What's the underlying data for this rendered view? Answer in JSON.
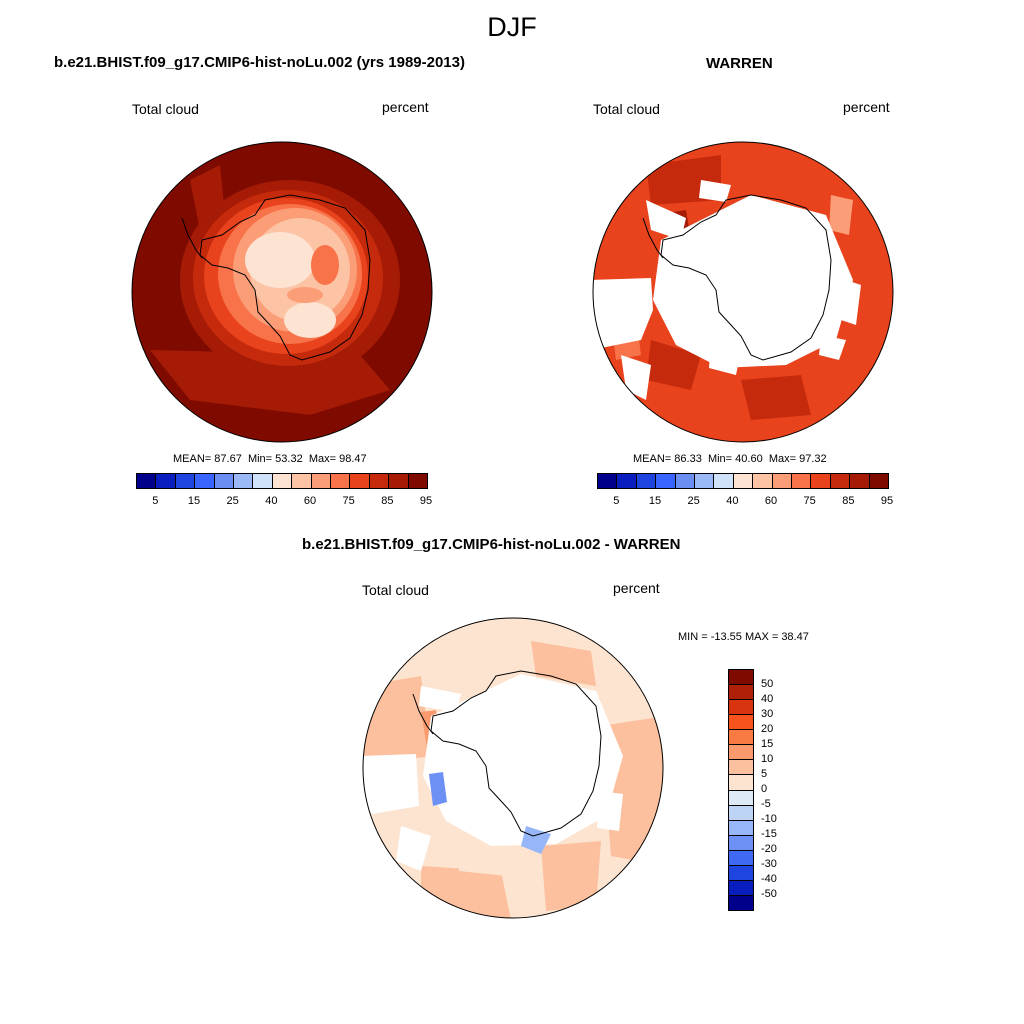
{
  "main_title": "DJF",
  "panels": [
    {
      "title": "b.e21.BHIST.f09_g17.CMIP6-hist-noLu.002 (yrs 1989-2013)",
      "variable_label": "Total cloud",
      "units_label": "percent",
      "stats": {
        "mean_label": "MEAN=",
        "mean": "87.67",
        "min_label": "Min=",
        "min": "53.32",
        "max_label": "Max=",
        "max": "98.47"
      }
    },
    {
      "title": "WARREN",
      "variable_label": "Total cloud",
      "units_label": "percent",
      "stats": {
        "mean_label": "MEAN=",
        "mean": "86.33",
        "min_label": "Min=",
        "min": "40.60",
        "max_label": "Max=",
        "max": "97.32"
      }
    },
    {
      "title": "b.e21.BHIST.f09_g17.CMIP6-hist-noLu.002 - WARREN",
      "variable_label": "Total cloud",
      "units_label": "percent",
      "stats_text": "MIN = -13.55 MAX =  38.47"
    }
  ],
  "chart_data": [
    {
      "type": "heatmap",
      "projection": "south polar stereographic",
      "title": "b.e21.BHIST.f09_g17.CMIP6-hist-noLu.002 (yrs 1989-2013)",
      "variable": "Total cloud",
      "units": "percent",
      "mean": 87.67,
      "min": 53.32,
      "max": 98.47,
      "colorbar": {
        "tick_labels": [
          "5",
          "15",
          "25",
          "40",
          "60",
          "75",
          "85",
          "95"
        ],
        "colors": [
          "#00008b",
          "#0a1ebf",
          "#1f45e0",
          "#3a64ff",
          "#6b8ef2",
          "#9bb8f7",
          "#cfe2f9",
          "#fde3d2",
          "#fcc4a4",
          "#fb9e78",
          "#f8734a",
          "#e8431d",
          "#c62a0c",
          "#a51b06",
          "#7f0b00"
        ]
      }
    },
    {
      "type": "heatmap",
      "projection": "south polar stereographic",
      "title": "WARREN",
      "variable": "Total cloud",
      "units": "percent",
      "mean": 86.33,
      "min": 40.6,
      "max": 97.32,
      "colorbar": {
        "tick_labels": [
          "5",
          "15",
          "25",
          "40",
          "60",
          "75",
          "85",
          "95"
        ],
        "colors": [
          "#00008b",
          "#0a1ebf",
          "#1f45e0",
          "#3a64ff",
          "#6b8ef2",
          "#9bb8f7",
          "#cfe2f9",
          "#fde3d2",
          "#fcc4a4",
          "#fb9e78",
          "#f8734a",
          "#e8431d",
          "#c62a0c",
          "#a51b06",
          "#7f0b00"
        ]
      }
    },
    {
      "type": "heatmap",
      "projection": "south polar stereographic",
      "title": "b.e21.BHIST.f09_g17.CMIP6-hist-noLu.002 - WARREN",
      "variable": "Total cloud",
      "units": "percent",
      "min": -13.55,
      "max": 38.47,
      "colorbar": {
        "orientation": "vertical",
        "tick_labels": [
          "50",
          "40",
          "30",
          "20",
          "15",
          "10",
          "5",
          "0",
          "-5",
          "-10",
          "-15",
          "-20",
          "-30",
          "-40",
          "-50"
        ],
        "colors": [
          "#7f0b00",
          "#b01f07",
          "#d9340f",
          "#f8531d",
          "#fa7a44",
          "#fb9a6c",
          "#fcc09e",
          "#fde4d0",
          "#dfeaf7",
          "#bed4f7",
          "#97b6f7",
          "#6d90f5",
          "#3f68f3",
          "#1f45e0",
          "#0a1ebf",
          "#00008b"
        ]
      }
    }
  ]
}
